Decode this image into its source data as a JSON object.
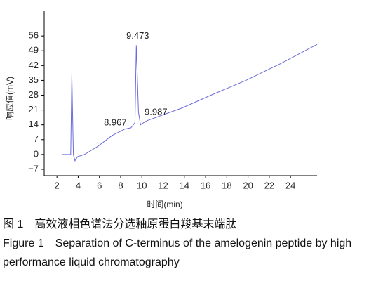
{
  "chart_data": {
    "type": "line",
    "xlabel": "时间(min)",
    "ylabel": "响应值(mV)",
    "x": [
      2.5,
      3.3,
      3.4,
      3.55,
      3.7,
      3.95,
      4.6,
      5.9,
      7.2,
      8.4,
      8.967,
      9.2,
      9.35,
      9.473,
      9.68,
      9.87,
      9.987,
      10.5,
      13.8,
      16.5,
      19.8,
      23.1,
      26.5
    ],
    "values": [
      0,
      0,
      37.7,
      0,
      -3,
      -1,
      0,
      4,
      9,
      12,
      12.6,
      14,
      15,
      51.6,
      20,
      14,
      14.5,
      16,
      22,
      28,
      35,
      43,
      52
    ],
    "color": "#6b6bdb",
    "peaks": [
      {
        "x": 9.473,
        "y": 51.6
      },
      {
        "x": 8.967,
        "y": 12.6
      },
      {
        "x": 9.987,
        "y": 14.5
      }
    ],
    "xlim": [
      0.8,
      26.5
    ],
    "ylim": [
      -10,
      68
    ],
    "xticks": [
      2,
      4,
      6,
      8,
      10,
      12,
      14,
      16,
      18,
      20,
      22,
      24
    ],
    "yticks": [
      {
        "value": -7,
        "label": "−7"
      },
      0,
      7,
      14,
      21,
      28,
      35,
      42,
      49,
      56
    ]
  },
  "caption": {
    "cn": "图 1　高效液相色谱法分选釉原蛋白羧基末端肽",
    "en": "Figure 1　Separation of C-terminus of the amelogenin peptide by high performance liquid chromatography"
  }
}
